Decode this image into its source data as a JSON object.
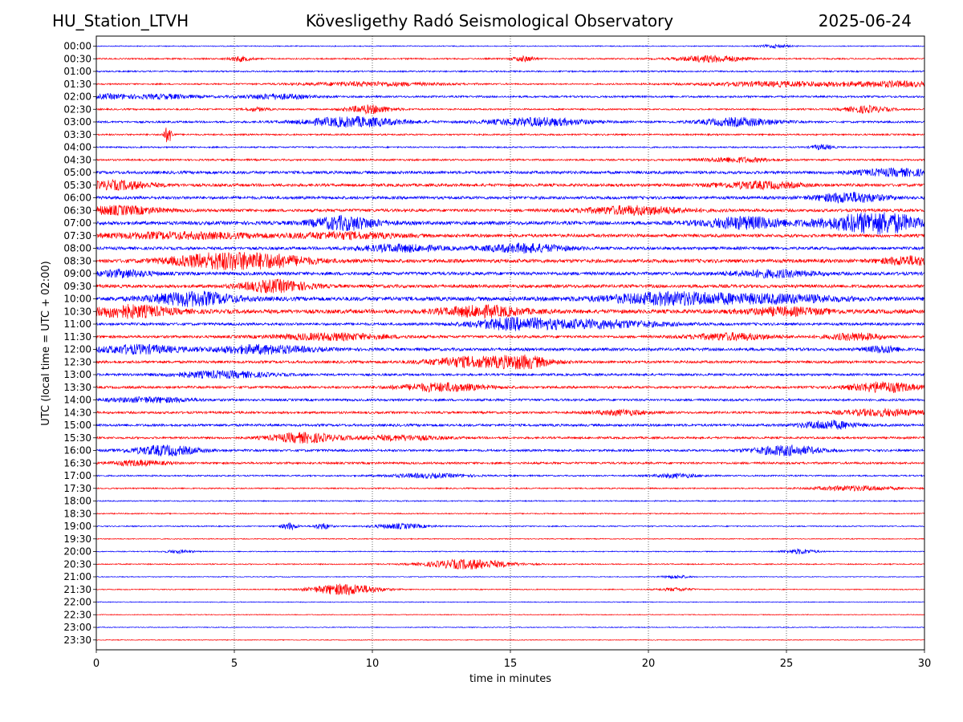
{
  "header": {
    "station": "HU_Station_LTVH",
    "observatory": "Kövesligethy Radó Seismological Observatory",
    "date": "2025-06-24"
  },
  "chart_data": {
    "type": "line",
    "title": "Kövesligethy Radó Seismological Observatory",
    "xlabel": "time in minutes",
    "ylabel": "UTC (local time = UTC + 02:00)",
    "xlim": [
      0,
      30
    ],
    "x_ticks": [
      "0",
      "5",
      "10",
      "15",
      "20",
      "25",
      "30"
    ],
    "vertical_grid_minutes": [
      5,
      10,
      15,
      20,
      25
    ],
    "grid": "vertical dotted",
    "colors": {
      "even_row": "#0000ff",
      "odd_row": "#ff0000"
    },
    "rows": [
      {
        "label": "00:00",
        "amplitude": 0.6,
        "bursts": [
          [
            24.6,
            0.5,
            2
          ]
        ]
      },
      {
        "label": "00:30",
        "amplitude": 0.9,
        "bursts": [
          [
            5.2,
            0.4,
            3
          ],
          [
            15.5,
            0.4,
            3
          ],
          [
            22.3,
            1.2,
            4
          ]
        ]
      },
      {
        "label": "01:00",
        "amplitude": 0.9,
        "bursts": []
      },
      {
        "label": "01:30",
        "amplitude": 0.9,
        "bursts": [
          [
            10.0,
            2.5,
            2.5
          ],
          [
            25.0,
            3.0,
            3
          ],
          [
            29.0,
            1.5,
            3
          ]
        ]
      },
      {
        "label": "02:00",
        "amplitude": 1.2,
        "bursts": [
          [
            0.5,
            0.8,
            2.5
          ],
          [
            2.5,
            1.2,
            2.5
          ],
          [
            6.5,
            1.2,
            3
          ]
        ]
      },
      {
        "label": "02:30",
        "amplitude": 1.0,
        "bursts": [
          [
            5.8,
            0.4,
            2
          ],
          [
            9.9,
            0.8,
            5
          ],
          [
            27.9,
            0.8,
            4
          ]
        ]
      },
      {
        "label": "03:00",
        "amplitude": 1.2,
        "bursts": [
          [
            9.3,
            1.8,
            6
          ],
          [
            16.0,
            1.8,
            5
          ],
          [
            23.3,
            1.4,
            5
          ]
        ]
      },
      {
        "label": "03:30",
        "amplitude": 1.0,
        "bursts": [
          [
            2.6,
            0.15,
            10
          ]
        ]
      },
      {
        "label": "04:00",
        "amplitude": 0.9,
        "bursts": [
          [
            26.3,
            0.4,
            3
          ]
        ]
      },
      {
        "label": "04:30",
        "amplitude": 1.1,
        "bursts": [
          [
            23.2,
            1.2,
            3
          ]
        ]
      },
      {
        "label": "05:00",
        "amplitude": 1.8,
        "bursts": [
          [
            29.0,
            1.5,
            4
          ]
        ]
      },
      {
        "label": "05:30",
        "amplitude": 1.8,
        "bursts": [
          [
            0.8,
            1.2,
            5
          ],
          [
            24.0,
            1.5,
            4
          ]
        ]
      },
      {
        "label": "06:00",
        "amplitude": 1.8,
        "bursts": [
          [
            27.3,
            1.2,
            6
          ]
        ]
      },
      {
        "label": "06:30",
        "amplitude": 1.8,
        "bursts": [
          [
            0.8,
            1.5,
            5
          ],
          [
            19.5,
            1.8,
            5
          ]
        ]
      },
      {
        "label": "07:00",
        "amplitude": 2.2,
        "bursts": [
          [
            9.0,
            1.2,
            8
          ],
          [
            23.5,
            1.5,
            7
          ],
          [
            27.5,
            1.5,
            8
          ],
          [
            28.8,
            1.2,
            8
          ]
        ]
      },
      {
        "label": "07:30",
        "amplitude": 2.0,
        "bursts": [
          [
            3.0,
            3.0,
            3.5
          ],
          [
            9.0,
            2.0,
            3.5
          ]
        ]
      },
      {
        "label": "08:00",
        "amplitude": 1.8,
        "bursts": [
          [
            11.0,
            1.5,
            4
          ],
          [
            15.5,
            1.5,
            5
          ]
        ]
      },
      {
        "label": "08:30",
        "amplitude": 2.2,
        "bursts": [
          [
            4.5,
            1.8,
            9
          ],
          [
            6.5,
            1.5,
            5
          ],
          [
            29.5,
            1.0,
            5
          ]
        ]
      },
      {
        "label": "09:00",
        "amplitude": 2.0,
        "bursts": [
          [
            1.0,
            1.0,
            4
          ],
          [
            24.5,
            1.5,
            4
          ]
        ]
      },
      {
        "label": "09:30",
        "amplitude": 2.0,
        "bursts": [
          [
            6.5,
            1.2,
            7
          ]
        ]
      },
      {
        "label": "10:00",
        "amplitude": 2.5,
        "bursts": [
          [
            3.5,
            1.5,
            8
          ],
          [
            21.0,
            2.5,
            7
          ],
          [
            25.0,
            2.0,
            4
          ]
        ]
      },
      {
        "label": "10:30",
        "amplitude": 2.5,
        "bursts": [
          [
            1.2,
            1.5,
            7
          ],
          [
            14.0,
            1.5,
            6
          ],
          [
            25.0,
            1.5,
            4
          ]
        ]
      },
      {
        "label": "11:00",
        "amplitude": 1.6,
        "bursts": [
          [
            15.0,
            1.5,
            6
          ],
          [
            18.0,
            2.5,
            5
          ]
        ]
      },
      {
        "label": "11:30",
        "amplitude": 1.6,
        "bursts": [
          [
            8.5,
            2.0,
            4
          ],
          [
            23.0,
            1.5,
            4
          ],
          [
            27.5,
            1.0,
            4
          ]
        ]
      },
      {
        "label": "12:00",
        "amplitude": 1.8,
        "bursts": [
          [
            1.5,
            1.5,
            5
          ],
          [
            6.0,
            1.8,
            5
          ],
          [
            28.5,
            0.6,
            4
          ]
        ]
      },
      {
        "label": "12:30",
        "amplitude": 1.6,
        "bursts": [
          [
            13.5,
            1.5,
            6
          ],
          [
            15.5,
            1.0,
            7
          ]
        ]
      },
      {
        "label": "13:00",
        "amplitude": 1.4,
        "bursts": [
          [
            4.5,
            1.8,
            4
          ]
        ]
      },
      {
        "label": "13:30",
        "amplitude": 1.5,
        "bursts": [
          [
            12.5,
            1.5,
            5
          ],
          [
            28.5,
            1.2,
            6
          ]
        ]
      },
      {
        "label": "14:00",
        "amplitude": 1.4,
        "bursts": [
          [
            2.0,
            1.5,
            3
          ]
        ]
      },
      {
        "label": "14:30",
        "amplitude": 1.4,
        "bursts": [
          [
            19.0,
            1.0,
            3
          ],
          [
            28.5,
            1.5,
            4
          ]
        ]
      },
      {
        "label": "15:00",
        "amplitude": 1.5,
        "bursts": [
          [
            26.5,
            1.0,
            5
          ]
        ]
      },
      {
        "label": "15:30",
        "amplitude": 1.3,
        "bursts": [
          [
            7.5,
            1.2,
            6
          ],
          [
            11.0,
            1.5,
            3
          ]
        ]
      },
      {
        "label": "16:00",
        "amplitude": 1.4,
        "bursts": [
          [
            2.5,
            1.2,
            6
          ],
          [
            25.0,
            1.2,
            6
          ]
        ]
      },
      {
        "label": "16:30",
        "amplitude": 1.3,
        "bursts": [
          [
            1.5,
            1.0,
            3
          ]
        ]
      },
      {
        "label": "17:00",
        "amplitude": 0.9,
        "bursts": [
          [
            12.0,
            1.5,
            2.5
          ],
          [
            21.0,
            0.8,
            2.5
          ]
        ]
      },
      {
        "label": "17:30",
        "amplitude": 0.8,
        "bursts": [
          [
            27.5,
            1.5,
            3
          ]
        ]
      },
      {
        "label": "18:00",
        "amplitude": 0.7,
        "bursts": []
      },
      {
        "label": "18:30",
        "amplitude": 0.7,
        "bursts": []
      },
      {
        "label": "19:00",
        "amplitude": 0.7,
        "bursts": [
          [
            7.0,
            0.3,
            4
          ],
          [
            8.2,
            0.3,
            4
          ],
          [
            11.0,
            1.0,
            3
          ]
        ]
      },
      {
        "label": "19:30",
        "amplitude": 0.6,
        "bursts": []
      },
      {
        "label": "20:00",
        "amplitude": 0.6,
        "bursts": [
          [
            3.0,
            0.5,
            2
          ],
          [
            25.5,
            0.6,
            3
          ]
        ]
      },
      {
        "label": "20:30",
        "amplitude": 0.7,
        "bursts": [
          [
            13.5,
            1.5,
            6
          ]
        ]
      },
      {
        "label": "21:00",
        "amplitude": 0.5,
        "bursts": [
          [
            21.0,
            0.5,
            2
          ]
        ]
      },
      {
        "label": "21:30",
        "amplitude": 0.6,
        "bursts": [
          [
            9.0,
            1.2,
            7
          ],
          [
            21.0,
            0.6,
            2
          ]
        ]
      },
      {
        "label": "22:00",
        "amplitude": 0.5,
        "bursts": []
      },
      {
        "label": "22:30",
        "amplitude": 0.5,
        "bursts": []
      },
      {
        "label": "23:00",
        "amplitude": 0.5,
        "bursts": []
      },
      {
        "label": "23:30",
        "amplitude": 0.5,
        "bursts": []
      }
    ]
  }
}
